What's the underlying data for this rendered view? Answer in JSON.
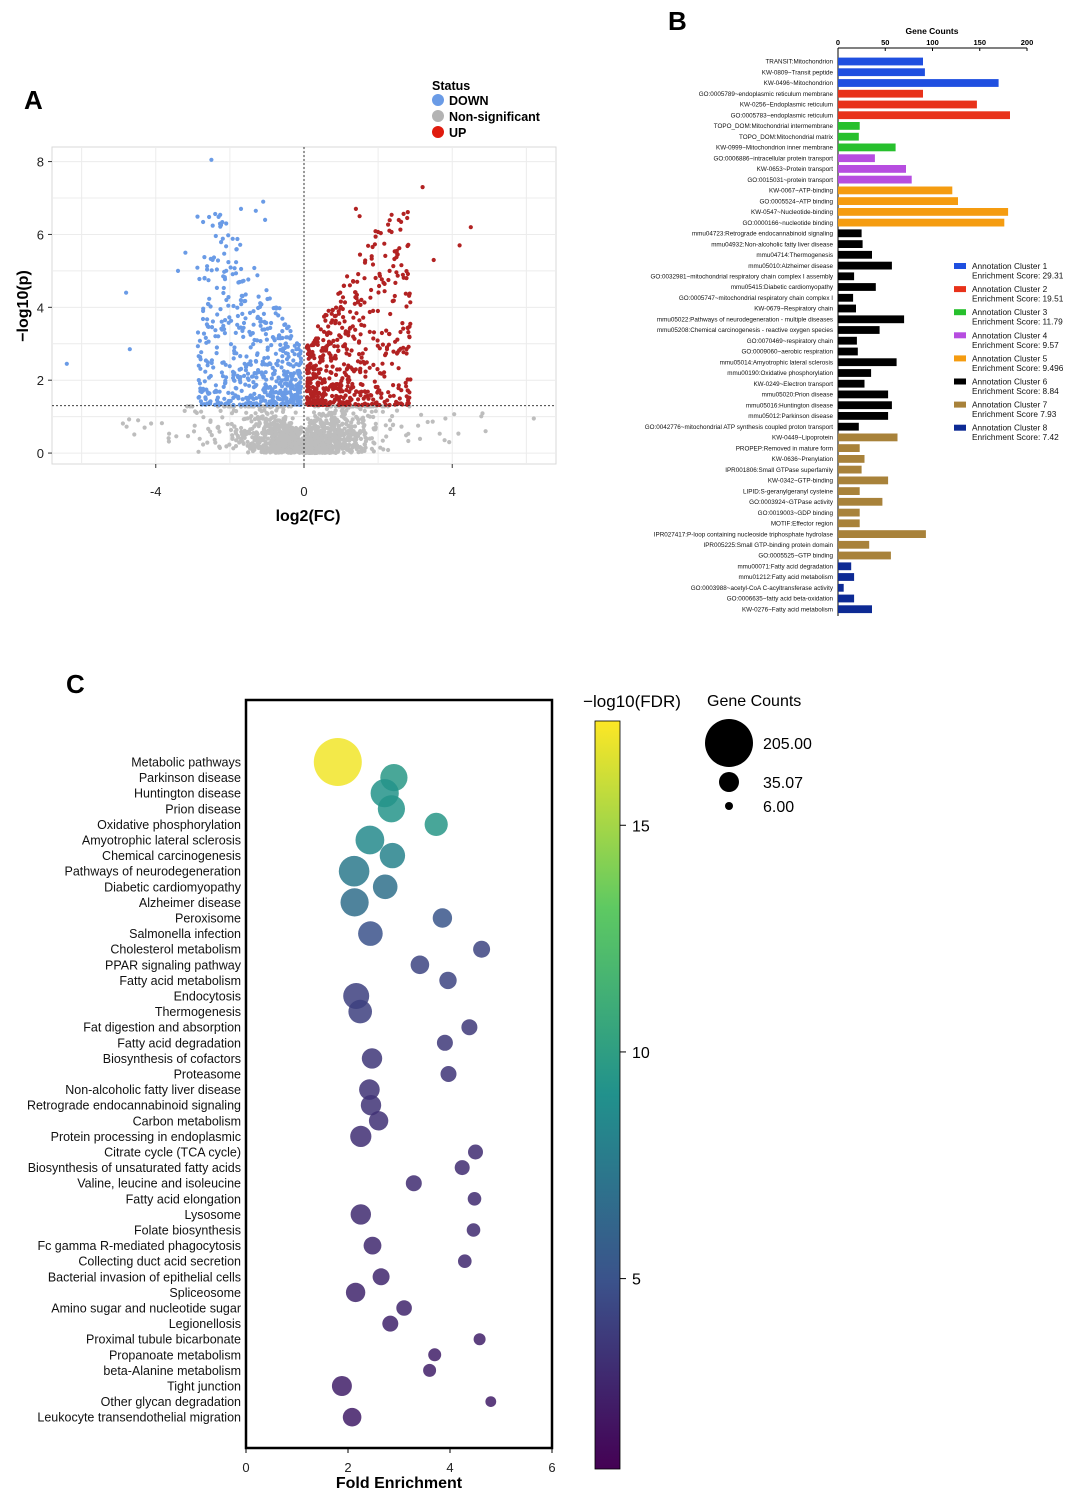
{
  "panels": {
    "a": "A",
    "b": "B",
    "c": "C"
  },
  "chart_data": [
    {
      "type": "scatter",
      "panel": "A",
      "xlabel": "log2(FC)",
      "ylabel": "−log10(p)",
      "xlim": [
        -6.8,
        6.8
      ],
      "ylim": [
        -0.3,
        8.4
      ],
      "xticks": [
        -4,
        0,
        4
      ],
      "yticks": [
        0,
        2,
        4,
        6,
        8
      ],
      "grid": true,
      "threshold_y": 1.3,
      "threshold_x": 0,
      "legend": {
        "title": "Status",
        "placement": "top-right",
        "entries": [
          {
            "label": "DOWN",
            "color": "#6a9be6"
          },
          {
            "label": "Non-significant",
            "color": "#b3b3b3"
          },
          {
            "label": "UP",
            "color": "#e01b0e"
          }
        ]
      },
      "colors": {
        "down": "#6a9be6",
        "ns": "#bdbdbd",
        "up": "#b22222"
      },
      "highlighted_points": {
        "down": [
          [
            -2.5,
            8.05
          ],
          [
            -6.4,
            2.45
          ],
          [
            -4.8,
            4.4
          ],
          [
            -4.7,
            2.85
          ],
          [
            -1.7,
            6.7
          ],
          [
            -1.1,
            6.9
          ],
          [
            -1.05,
            6.4
          ],
          [
            -2.1,
            6.3
          ],
          [
            -1.3,
            6.65
          ],
          [
            -3.2,
            5.5
          ],
          [
            -3.4,
            5.0
          ]
        ],
        "up": [
          [
            3.2,
            7.3
          ],
          [
            1.4,
            6.7
          ],
          [
            1.5,
            6.5
          ],
          [
            4.5,
            6.2
          ],
          [
            4.2,
            5.7
          ],
          [
            3.5,
            5.3
          ]
        ],
        "ns": [
          [
            6.2,
            0.95
          ],
          [
            4.9,
            0.6
          ],
          [
            -4.3,
            0.7
          ]
        ]
      },
      "counts_approx": {
        "down": 560,
        "up": 560,
        "ns": 1300
      }
    },
    {
      "type": "bar",
      "orientation": "horizontal",
      "panel": "B",
      "title": "Gene Counts",
      "xlim": [
        0,
        200
      ],
      "xticks": [
        0,
        50,
        100,
        150,
        200
      ],
      "legend_placement": "right",
      "clusters": [
        {
          "label": "Annotation Cluster 1",
          "score": "Enrichment Score: 29.31",
          "color": "#1f4fe0"
        },
        {
          "label": "Annotation Cluster 2",
          "score": "Enrichment Score: 19.51",
          "color": "#e8321a"
        },
        {
          "label": "Annotation Cluster 3",
          "score": " Enrichment Score: 11.79",
          "color": "#27c02d"
        },
        {
          "label": "Annotation Cluster 4",
          "score": "Enrichment Score: 9.57",
          "color": "#b74de0"
        },
        {
          "label": "Annotation Cluster 5",
          "score": "Enrichment Score: 9.496",
          "color": "#f59c10"
        },
        {
          "label": "Annotation Cluster 6",
          "score": "Enrichment Score: 8.84",
          "color": "#000000"
        },
        {
          "label": "Annotation Cluster 7",
          "score": "Enrichment Score 7.93",
          "color": "#a8823a"
        },
        {
          "label": "Annotation Cluster 8",
          "score": "Enrichment Score: 7.42",
          "color": "#0d2a94"
        }
      ],
      "bars": [
        {
          "label": "TRANSIT:Mitochondrion",
          "value": 90,
          "cluster": 0
        },
        {
          "label": "KW-0809~Transit peptide",
          "value": 92,
          "cluster": 0
        },
        {
          "label": "KW-0496~Mitochondrion",
          "value": 170,
          "cluster": 0
        },
        {
          "label": "GO:0005789~endoplasmic reticulum membrane",
          "value": 90,
          "cluster": 1
        },
        {
          "label": "KW-0256~Endoplasmic reticulum",
          "value": 147,
          "cluster": 1
        },
        {
          "label": "GO:0005783~endoplasmic reticulum",
          "value": 182,
          "cluster": 1
        },
        {
          "label": "TOPO_DOM:Mitochondrial intermembrane",
          "value": 23,
          "cluster": 2
        },
        {
          "label": "TOPO_DOM:Mitochondrial matrix",
          "value": 22,
          "cluster": 2
        },
        {
          "label": "KW-0999~Mitochondrion inner membrane",
          "value": 61,
          "cluster": 2
        },
        {
          "label": "GO:0006886~intracellular protein transport",
          "value": 39,
          "cluster": 3
        },
        {
          "label": "KW-0653~Protein transport",
          "value": 72,
          "cluster": 3
        },
        {
          "label": "GO:0015031~protein transport",
          "value": 78,
          "cluster": 3
        },
        {
          "label": "KW-0067~ATP-binding",
          "value": 121,
          "cluster": 4
        },
        {
          "label": "GO:0005524~ATP binding",
          "value": 127,
          "cluster": 4
        },
        {
          "label": "KW-0547~Nucleotide-binding",
          "value": 180,
          "cluster": 4
        },
        {
          "label": "GO:0000166~nucleotide binding",
          "value": 176,
          "cluster": 4
        },
        {
          "label": "mmu04723:Retrograde endocannabinoid signaling",
          "value": 25,
          "cluster": 5
        },
        {
          "label": "mmu04932:Non-alcoholic fatty liver disease",
          "value": 26,
          "cluster": 5
        },
        {
          "label": "mmu04714:Thermogenesis",
          "value": 36,
          "cluster": 5
        },
        {
          "label": "mmu05010:Alzheimer disease",
          "value": 57,
          "cluster": 5
        },
        {
          "label": "GO:0032981~mitochondrial respiratory chain complex I assembly",
          "value": 17,
          "cluster": 5
        },
        {
          "label": "mmu05415:Diabetic cardiomyopathy",
          "value": 40,
          "cluster": 5
        },
        {
          "label": "GO:0005747~mitochondrial respiratory chain complex I",
          "value": 16,
          "cluster": 5
        },
        {
          "label": "KW-0679~Respiratory chain",
          "value": 19,
          "cluster": 5
        },
        {
          "label": "mmu05022:Pathways of neurodegeneration - multiple diseases",
          "value": 70,
          "cluster": 5
        },
        {
          "label": "mmu05208:Chemical carcinogenesis - reactive oxygen species",
          "value": 44,
          "cluster": 5
        },
        {
          "label": "GO:0070469~respiratory chain",
          "value": 20,
          "cluster": 5
        },
        {
          "label": "GO:0009060~aerobic respiration",
          "value": 21,
          "cluster": 5
        },
        {
          "label": "mmu05014:Amyotrophic lateral sclerosis",
          "value": 62,
          "cluster": 5
        },
        {
          "label": "mmu00190:Oxidative phosphorylation",
          "value": 35,
          "cluster": 5
        },
        {
          "label": "KW-0249~Electron transport",
          "value": 28,
          "cluster": 5
        },
        {
          "label": "mmu05020:Prion disease",
          "value": 53,
          "cluster": 5
        },
        {
          "label": "mmu05016:Huntington disease",
          "value": 57,
          "cluster": 5
        },
        {
          "label": "mmu05012:Parkinson disease",
          "value": 53,
          "cluster": 5
        },
        {
          "label": "GO:0042776~mitochondrial ATP synthesis coupled proton transport",
          "value": 22,
          "cluster": 5
        },
        {
          "label": "KW-0449~Lipoprotein",
          "value": 63,
          "cluster": 6
        },
        {
          "label": "PROPEP:Removed in mature form",
          "value": 23,
          "cluster": 6
        },
        {
          "label": "KW-0636~Prenylation",
          "value": 28,
          "cluster": 6
        },
        {
          "label": "IPR001806:Small GTPase superfamily",
          "value": 25,
          "cluster": 6
        },
        {
          "label": "KW-0342~GTP-binding",
          "value": 53,
          "cluster": 6
        },
        {
          "label": "LIPID:S-geranylgeranyl cysteine",
          "value": 23,
          "cluster": 6
        },
        {
          "label": "GO:0003924~GTPase activity",
          "value": 47,
          "cluster": 6
        },
        {
          "label": "GO:0019003~GDP binding",
          "value": 23,
          "cluster": 6
        },
        {
          "label": "MOTIF:Effector region",
          "value": 23,
          "cluster": 6
        },
        {
          "label": "IPR027417:P-loop containing nucleoside triphosphate hydrolase",
          "value": 93,
          "cluster": 6
        },
        {
          "label": "IPR005225:Small GTP-binding protein domain",
          "value": 33,
          "cluster": 6
        },
        {
          "label": "GO:0005525~GTP binding",
          "value": 56,
          "cluster": 6
        },
        {
          "label": "mmu00071:Fatty acid degradation",
          "value": 14,
          "cluster": 7
        },
        {
          "label": "mmu01212:Fatty acid metabolism",
          "value": 17,
          "cluster": 7
        },
        {
          "label": "GO:0003988~acetyl-CoA C-acyltransferase activity",
          "value": 6,
          "cluster": 7
        },
        {
          "label": "GO:0006635~fatty acid beta-oxidation",
          "value": 17,
          "cluster": 7
        },
        {
          "label": "KW-0276~Fatty acid metabolism",
          "value": 36,
          "cluster": 7
        }
      ]
    },
    {
      "type": "scatter",
      "subtype": "bubble",
      "panel": "C",
      "xlabel": "Fold Enrichment",
      "xlim": [
        0,
        6
      ],
      "xticks": [
        0,
        2,
        4,
        6
      ],
      "color_scale": {
        "title": "−log10(FDR)",
        "range": [
          0.8,
          17.3
        ],
        "ticks": [
          5,
          10,
          15
        ],
        "colors": [
          "#440154",
          "#3b528b",
          "#21918c",
          "#5ec962",
          "#fde725"
        ]
      },
      "size_legend": {
        "title": "Gene Counts",
        "entries": [
          "205.00",
          "35.07",
          "6.00"
        ],
        "values": [
          205,
          35.07,
          6
        ]
      },
      "terms": [
        {
          "name": "Metabolic pathways",
          "fe": 1.8,
          "fdr": 17.0,
          "count": 205
        },
        {
          "name": "Parkinson disease",
          "fe": 2.9,
          "fdr": 9.6,
          "count": 52
        },
        {
          "name": "Huntington disease",
          "fe": 2.72,
          "fdr": 9.2,
          "count": 57
        },
        {
          "name": "Prion disease",
          "fe": 2.85,
          "fdr": 9.3,
          "count": 52
        },
        {
          "name": "Oxidative phosphorylation",
          "fe": 3.73,
          "fdr": 9.5,
          "count": 35
        },
        {
          "name": "Amyotrophic lateral sclerosis",
          "fe": 2.43,
          "fdr": 8.6,
          "count": 60
        },
        {
          "name": "Chemical carcinogenesis",
          "fe": 2.87,
          "fdr": 8.1,
          "count": 44
        },
        {
          "name": "Pathways of neurodegeneration",
          "fe": 2.12,
          "fdr": 7.5,
          "count": 70
        },
        {
          "name": "Diabetic cardiomyopathy",
          "fe": 2.73,
          "fdr": 6.9,
          "count": 40
        },
        {
          "name": "Alzheimer disease",
          "fe": 2.13,
          "fdr": 6.7,
          "count": 57
        },
        {
          "name": "Peroxisome",
          "fe": 3.85,
          "fdr": 5.2,
          "count": 22
        },
        {
          "name": "Salmonella infection",
          "fe": 2.44,
          "fdr": 4.9,
          "count": 40
        },
        {
          "name": "Cholesterol metabolism",
          "fe": 4.62,
          "fdr": 4.2,
          "count": 16
        },
        {
          "name": "PPAR signaling pathway",
          "fe": 3.41,
          "fdr": 4.2,
          "count": 20
        },
        {
          "name": "Fatty acid metabolism",
          "fe": 3.96,
          "fdr": 4.2,
          "count": 17
        },
        {
          "name": "Endocytosis",
          "fe": 2.16,
          "fdr": 4.0,
          "count": 46
        },
        {
          "name": "Thermogenesis",
          "fe": 2.24,
          "fdr": 4.0,
          "count": 36
        },
        {
          "name": "Fat digestion and absorption",
          "fe": 4.38,
          "fdr": 3.6,
          "count": 14
        },
        {
          "name": "Fatty acid degradation",
          "fe": 3.9,
          "fdr": 3.6,
          "count": 14
        },
        {
          "name": "Biosynthesis of cofactors",
          "fe": 2.47,
          "fdr": 3.5,
          "count": 25
        },
        {
          "name": "Proteasome",
          "fe": 3.97,
          "fdr": 3.4,
          "count": 14
        },
        {
          "name": "Non-alcoholic fatty liver disease",
          "fe": 2.42,
          "fdr": 3.3,
          "count": 26
        },
        {
          "name": "Retrograde endocannabinoid signaling",
          "fe": 2.45,
          "fdr": 3.3,
          "count": 25
        },
        {
          "name": "Carbon metabolism",
          "fe": 2.6,
          "fdr": 3.2,
          "count": 22
        },
        {
          "name": "Protein processing in endoplasmic",
          "fe": 2.25,
          "fdr": 3.1,
          "count": 28
        },
        {
          "name": "Citrate cycle (TCA cycle)",
          "fe": 4.5,
          "fdr": 3.0,
          "count": 12
        },
        {
          "name": "Biosynthesis of unsaturated fatty acids",
          "fe": 4.24,
          "fdr": 3.0,
          "count": 12
        },
        {
          "name": "Valine, leucine and isoleucine",
          "fe": 3.29,
          "fdr": 3.0,
          "count": 14
        },
        {
          "name": "Fatty acid elongation",
          "fe": 4.48,
          "fdr": 2.9,
          "count": 10
        },
        {
          "name": "Lysosome",
          "fe": 2.25,
          "fdr": 2.9,
          "count": 25
        },
        {
          "name": "Folate biosynthesis",
          "fe": 4.46,
          "fdr": 2.9,
          "count": 10
        },
        {
          "name": "Fc gamma R-mediated phagocytosis",
          "fe": 2.48,
          "fdr": 2.8,
          "count": 18
        },
        {
          "name": "Collecting duct acid secretion",
          "fe": 4.29,
          "fdr": 2.8,
          "count": 10
        },
        {
          "name": "Bacterial invasion of epithelial cells",
          "fe": 2.65,
          "fdr": 2.7,
          "count": 16
        },
        {
          "name": "Spliceosome",
          "fe": 2.15,
          "fdr": 2.6,
          "count": 22
        },
        {
          "name": "Amino sugar and nucleotide sugar",
          "fe": 3.1,
          "fdr": 2.6,
          "count": 13
        },
        {
          "name": "Legionellosis",
          "fe": 2.83,
          "fdr": 2.5,
          "count": 14
        },
        {
          "name": "Proximal tubule bicarbonate",
          "fe": 4.58,
          "fdr": 2.4,
          "count": 8
        },
        {
          "name": "Propanoate metabolism",
          "fe": 3.7,
          "fdr": 2.3,
          "count": 9
        },
        {
          "name": "beta-Alanine metabolism",
          "fe": 3.6,
          "fdr": 2.3,
          "count": 9
        },
        {
          "name": "Tight junction",
          "fe": 1.88,
          "fdr": 2.3,
          "count": 24
        },
        {
          "name": "Other glycan degradation",
          "fe": 4.8,
          "fdr": 2.2,
          "count": 7
        },
        {
          "name": "Leukocyte transendothelial migration",
          "fe": 2.08,
          "fdr": 2.2,
          "count": 20
        }
      ]
    }
  ]
}
